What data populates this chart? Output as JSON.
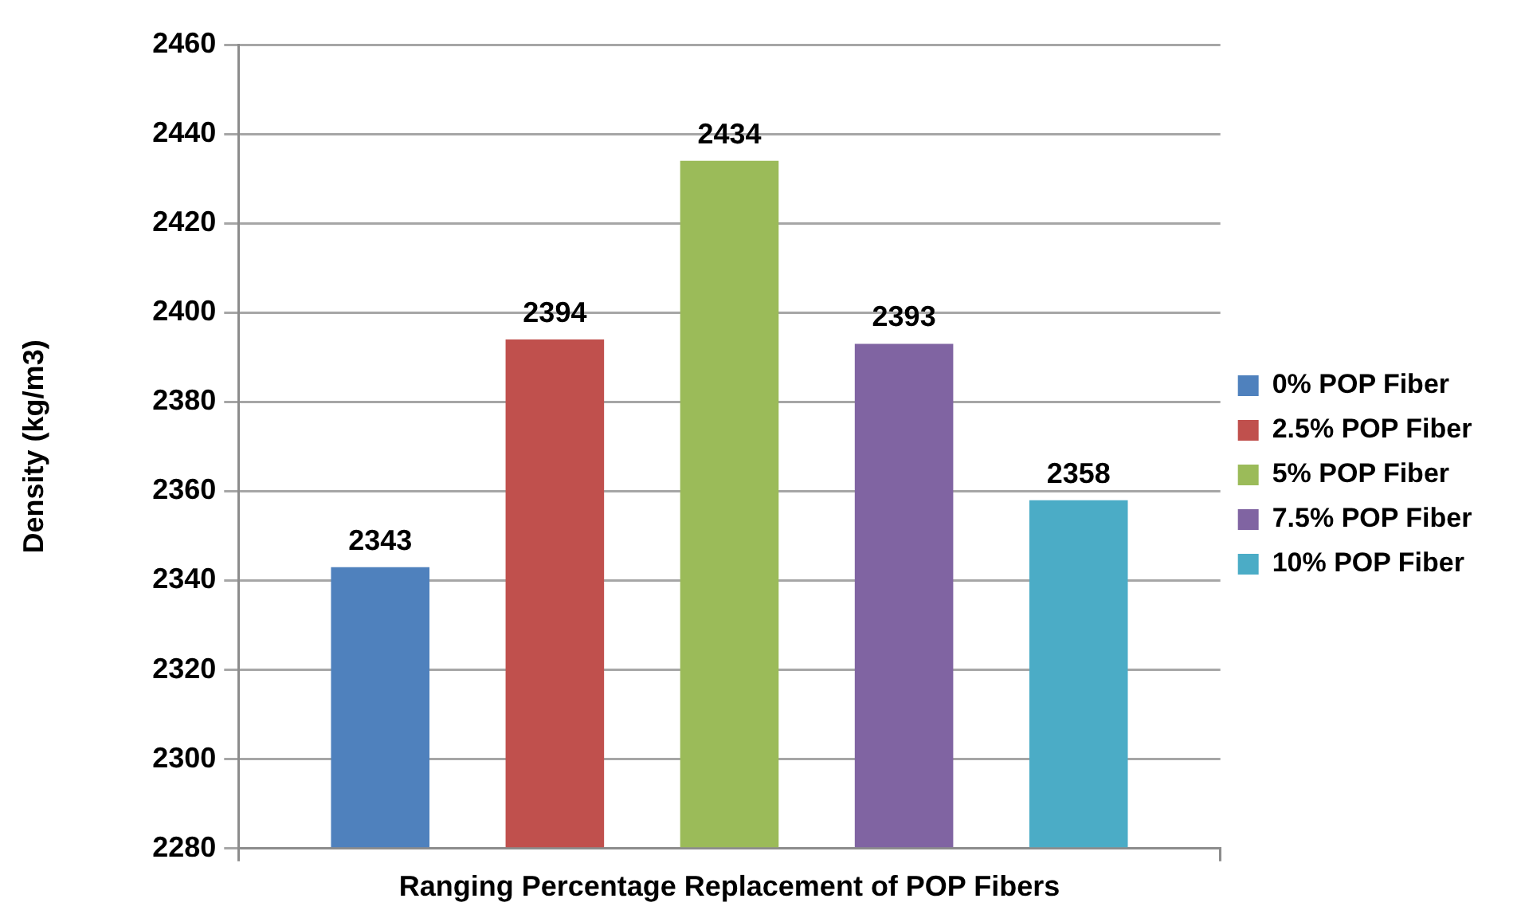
{
  "chart_data": {
    "type": "bar",
    "xlabel": "Ranging Percentage Replacement of POP Fibers",
    "ylabel": "Density (kg/m3)",
    "categories": [
      null
    ],
    "series": [
      {
        "name": "0% POP Fiber",
        "color": "#4f81bd",
        "values": [
          2343
        ]
      },
      {
        "name": "2.5% POP Fiber",
        "color": "#c0504d",
        "values": [
          2394
        ]
      },
      {
        "name": "5% POP Fiber",
        "color": "#9bbb59",
        "values": [
          2434
        ]
      },
      {
        "name": "7.5% POP Fiber",
        "color": "#8064a2",
        "values": [
          2393
        ]
      },
      {
        "name": "10% POP Fiber",
        "color": "#4bacc6",
        "values": [
          2358
        ]
      }
    ],
    "ylim": [
      2280,
      2460
    ],
    "yticks": [
      2280,
      2300,
      2320,
      2340,
      2360,
      2380,
      2400,
      2420,
      2440,
      2460
    ],
    "grid": "y",
    "legend": "right",
    "data_labels": true
  }
}
